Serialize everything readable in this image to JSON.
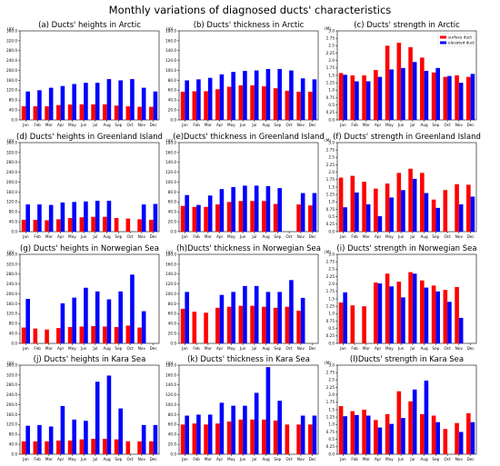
{
  "suptitle": "Monthly variations of diagnosed ducts' characteristics",
  "chart_data": {
    "type": "bar",
    "months": [
      "Jan",
      "Feb",
      "Mar",
      "Apr",
      "May",
      "Jun",
      "Jul",
      "Aug",
      "Sep",
      "Oct",
      "Nov",
      "Dec"
    ],
    "series_names": [
      "surface duct",
      "elevated duct"
    ],
    "colors": {
      "surface": "#ff0000",
      "elevated": "#0000ff"
    },
    "legend": "top-right of panel (c)",
    "rows": [
      {
        "region": "Arctic",
        "panels": [
          {
            "title": "(a) Ducts' heights in Arctic",
            "unit": "(m)",
            "ymax": 360,
            "yticks": [
              "0.0",
              "40.0",
              "80.0",
              "120.0",
              "160.0",
              "200.0",
              "240.0",
              "280.0",
              "320.0",
              "360.0"
            ],
            "surface": [
              55,
              55,
              55,
              60,
              62,
              63,
              63,
              63,
              58,
              55,
              53,
              53
            ],
            "elevated": [
              115,
              120,
              130,
              137,
              145,
              150,
              150,
              165,
              160,
              165,
              130,
              115
            ]
          },
          {
            "title": "(b) Ducts' thickness in Arctic",
            "unit": "(m)",
            "ymax": 180,
            "yticks": [
              "0.0",
              "20.0",
              "40.0",
              "60.0",
              "80.0",
              "100.0",
              "120.0",
              "140.0",
              "160.0",
              "180.0"
            ],
            "surface": [
              57,
              58,
              58,
              62,
              67,
              70,
              70,
              68,
              64,
              59,
              57,
              57
            ],
            "elevated": [
              80,
              82,
              85,
              92,
              97,
              99,
              100,
              103,
              103,
              100,
              84,
              82
            ]
          },
          {
            "title": "(c) Ducts' strength in Arctic",
            "unit": "(M)",
            "ymax": 3.0,
            "yticks": [
              "0.0",
              "0.25",
              "0.5",
              "0.75",
              "1.0",
              "1.25",
              "1.5",
              "1.75",
              "2.0",
              "2.25",
              "2.5",
              "2.75",
              "3.0"
            ],
            "surface": [
              1.58,
              1.5,
              1.5,
              1.68,
              2.5,
              2.6,
              2.45,
              2.1,
              1.6,
              1.45,
              1.5,
              1.45
            ],
            "elevated": [
              1.52,
              1.3,
              1.3,
              1.45,
              1.7,
              1.75,
              1.95,
              1.65,
              1.75,
              1.48,
              1.25,
              1.55
            ]
          }
        ]
      },
      {
        "region": "Greenland Island",
        "panels": [
          {
            "title": "(d) Ducts' heights in Greenland Island",
            "unit": "(m)",
            "ymax": 360,
            "yticks": [
              "0.0",
              "40.0",
              "80.0",
              "120.0",
              "160.0",
              "200.0",
              "240.0",
              "280.0",
              "320.0",
              "360.0"
            ],
            "surface": [
              48,
              48,
              46,
              50,
              55,
              58,
              60,
              60,
              55,
              53,
              50,
              48
            ],
            "elevated": [
              110,
              110,
              108,
              118,
              120,
              122,
              125,
              125,
              0,
              0,
              110,
              112
            ]
          },
          {
            "title": "(e)Ducts' thickness in Greenland Island",
            "unit": "(m)",
            "ymax": 180,
            "yticks": [
              "0.0",
              "20.0",
              "40.0",
              "60.0",
              "80.0",
              "100.0",
              "120.0",
              "140.0",
              "160.0",
              "180.0"
            ],
            "surface": [
              52,
              50,
              50,
              55,
              60,
              62,
              62,
              62,
              56,
              0,
              55,
              53
            ],
            "elevated": [
              74,
              54,
              73,
              86,
              90,
              93,
              93,
              92,
              88,
              0,
              78,
              78
            ]
          },
          {
            "title": "(f) Ducts' strength in Greenland Island",
            "unit": "(M)",
            "ymax": 3.0,
            "yticks": [
              "0.0",
              "0.25",
              "0.5",
              "0.75",
              "1.0",
              "1.25",
              "1.5",
              "1.75",
              "2.0",
              "2.25",
              "2.5",
              "2.75",
              "3.0"
            ],
            "surface": [
              1.82,
              1.88,
              1.68,
              1.45,
              1.62,
              1.98,
              2.12,
              1.98,
              1.08,
              1.4,
              1.6,
              1.58
            ],
            "elevated": [
              0.82,
              1.32,
              0.92,
              0.52,
              1.15,
              1.4,
              1.78,
              1.3,
              0.8,
              0,
              0.92,
              1.18
            ]
          }
        ]
      },
      {
        "region": "Norwegian Sea",
        "panels": [
          {
            "title": "(g) Ducts' heights in Norwegian Sea",
            "unit": "(m)",
            "ymax": 360,
            "yticks": [
              "0.0",
              "40.0",
              "80.0",
              "120.0",
              "160.0",
              "200.0",
              "240.0",
              "280.0",
              "320.0",
              "360.0"
            ],
            "surface": [
              64,
              60,
              56,
              62,
              66,
              68,
              70,
              68,
              66,
              72,
              64,
              0
            ],
            "elevated": [
              180,
              0,
              0,
              162,
              185,
              225,
              210,
              178,
              210,
              278,
              130,
              0
            ]
          },
          {
            "title": "(h)Ducts' thickness in Norwegian Sea",
            "unit": "(m)",
            "ymax": 180,
            "yticks": [
              "0.0",
              "20.0",
              "40.0",
              "60.0",
              "80.0",
              "100.0",
              "120.0",
              "140.0",
              "160.0",
              "180.0"
            ],
            "surface": [
              70,
              64,
              62,
              72,
              74,
              76,
              76,
              74,
              72,
              74,
              66,
              0
            ],
            "elevated": [
              104,
              0,
              0,
              98,
              104,
              116,
              116,
              104,
              104,
              128,
              92,
              0
            ]
          },
          {
            "title": "(i) Ducts' strength in Norwegian Sea",
            "unit": "(M)",
            "ymax": 3.0,
            "yticks": [
              "0.0",
              "0.25",
              "0.5",
              "0.75",
              "1.0",
              "1.25",
              "1.5",
              "1.75",
              "2.0",
              "2.25",
              "2.5",
              "2.75",
              "3.0"
            ],
            "surface": [
              1.38,
              1.28,
              1.25,
              2.05,
              2.35,
              2.08,
              2.4,
              2.12,
              1.95,
              1.8,
              1.9,
              0
            ],
            "elevated": [
              1.72,
              0,
              0,
              2.02,
              1.92,
              1.55,
              2.35,
              1.88,
              1.75,
              1.4,
              0.86,
              0
            ]
          }
        ]
      },
      {
        "region": "Kara Sea",
        "panels": [
          {
            "title": "(j) Ducts' heights in Kara Sea",
            "unit": "(m)",
            "ymax": 360,
            "yticks": [
              "0.0",
              "40.0",
              "80.0",
              "120.0",
              "160.0",
              "200.0",
              "240.0",
              "280.0",
              "320.0",
              "360.0"
            ],
            "surface": [
              52,
              52,
              52,
              55,
              55,
              60,
              62,
              62,
              60,
              52,
              52,
              52
            ],
            "elevated": [
              115,
              118,
              112,
              195,
              140,
              135,
              293,
              318,
              185,
              0,
              118,
              118
            ]
          },
          {
            "title": "(k) Ducts' thickness in Kara Sea",
            "unit": "(m)",
            "ymax": 180,
            "yticks": [
              "0.0",
              "20.0",
              "40.0",
              "60.0",
              "80.0",
              "100.0",
              "120.0",
              "140.0",
              "160.0",
              "180.0"
            ],
            "surface": [
              60,
              62,
              60,
              62,
              66,
              70,
              70,
              70,
              68,
              60,
              60,
              60
            ],
            "elevated": [
              78,
              80,
              80,
              104,
              98,
              98,
              124,
              176,
              108,
              0,
              78,
              78
            ]
          },
          {
            "title": "(l)Ducts' strength in Kara Sea",
            "unit": "(M)",
            "ymax": 3.0,
            "yticks": [
              "0.0",
              "0.25",
              "0.5",
              "0.75",
              "1.0",
              "1.25",
              "1.5",
              "1.75",
              "2.0",
              "2.25",
              "2.5",
              "2.75",
              "3.0"
            ],
            "surface": [
              1.62,
              1.45,
              1.5,
              1.15,
              1.35,
              2.12,
              1.78,
              1.35,
              1.3,
              0.85,
              1.05,
              1.38
            ],
            "elevated": [
              1.28,
              1.32,
              1.3,
              0.9,
              1.02,
              1.22,
              2.18,
              2.48,
              1.08,
              0,
              0.75,
              1.08
            ]
          }
        ]
      }
    ]
  }
}
